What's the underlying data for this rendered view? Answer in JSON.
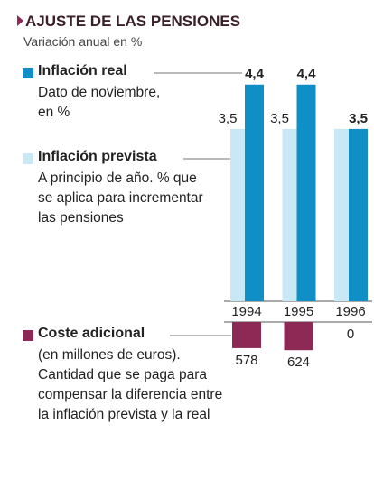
{
  "chart_data": [
    {
      "type": "bar",
      "title": "AJUSTE DE LAS PENSIONES",
      "subtitle": "Variación anual en %",
      "categories": [
        "1994",
        "1995",
        "1996"
      ],
      "series": [
        {
          "name": "Inflación real",
          "description": "Dato de noviembre, en %",
          "color": "#0f8fc6",
          "values": [
            4.4,
            4.4,
            3.5
          ],
          "value_labels": [
            "4,4",
            "4,4",
            "3,5"
          ]
        },
        {
          "name": "Inflación prevista",
          "description": "A principio de año. % que se aplica para incrementar las pensiones",
          "color": "#c8e8f6",
          "values": [
            3.5,
            3.5,
            3.5
          ],
          "value_labels": [
            "3,5",
            "3,5",
            null
          ]
        }
      ]
    },
    {
      "type": "bar",
      "name": "Coste adicional",
      "description": "(en millones de euros). Cantidad que se paga para compensar la diferencia entre la inflación prevista y la real",
      "color": "#8c2a55",
      "values": [
        578,
        624,
        0
      ]
    }
  ]
}
